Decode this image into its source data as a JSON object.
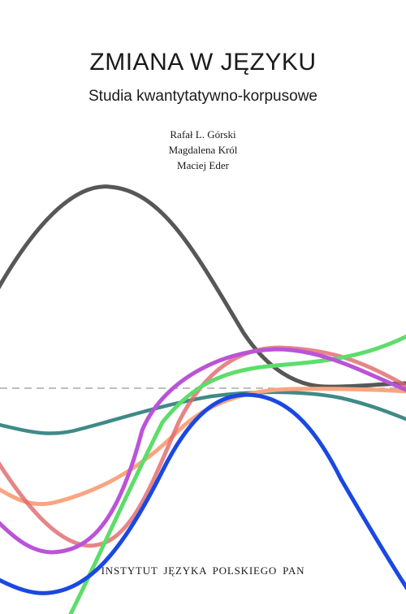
{
  "book": {
    "title": "ZMIANA W JĘZYKU",
    "subtitle": "Studia kwantytatywno-korpusowe",
    "authors": [
      "Rafał L. Górski",
      "Magdalena Król",
      "Maciej Eder"
    ],
    "publisher": "INSTYTUT JĘZYKA POLSKIEGO PAN"
  },
  "artwork": {
    "baseline_color": "#a8a8a8",
    "lines": [
      {
        "name": "dark-gray-curve",
        "color": "#575757",
        "opacity": 1
      },
      {
        "name": "teal-curve",
        "color": "#3f8a87",
        "opacity": 1
      },
      {
        "name": "orange-curve",
        "color": "#f9a57f",
        "opacity": 1
      },
      {
        "name": "red-curve",
        "color": "#e0676a",
        "opacity": 0.8
      },
      {
        "name": "green-curve",
        "color": "#5ddd6a",
        "opacity": 1
      },
      {
        "name": "purple-curve",
        "color": "#bb53d8",
        "opacity": 1
      },
      {
        "name": "blue-curve",
        "color": "#1a48e2",
        "opacity": 1
      }
    ]
  }
}
